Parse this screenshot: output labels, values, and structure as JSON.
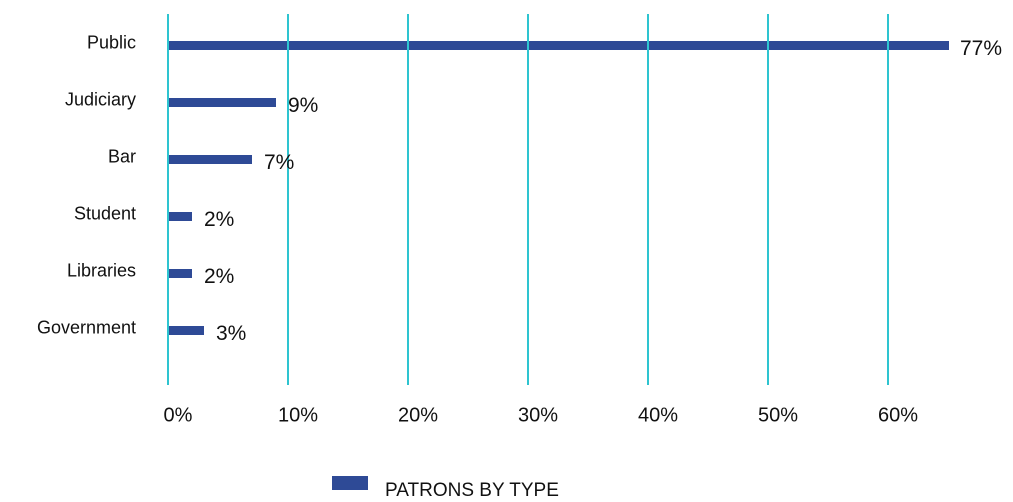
{
  "chart_data": {
    "type": "hbar",
    "categories": [
      "Public",
      "Judiciary",
      "Bar",
      "Student",
      "Libraries",
      "Government"
    ],
    "series": [
      {
        "name": "PATRONS BY TYPE",
        "color": "#2e4a96",
        "values": [
          77,
          9,
          7,
          2,
          2,
          3
        ],
        "value_labels": [
          "77%",
          "9%",
          "7%",
          "2%",
          "2%",
          "3%"
        ]
      }
    ],
    "xlim": [
      0,
      65
    ],
    "xticks": [
      {
        "value": 0,
        "label": "0%"
      },
      {
        "value": 10,
        "label": "10%"
      },
      {
        "value": 20,
        "label": "20%"
      },
      {
        "value": 30,
        "label": "30%"
      },
      {
        "value": 40,
        "label": "40%"
      },
      {
        "value": 50,
        "label": "50%"
      },
      {
        "value": 60,
        "label": "60%"
      }
    ],
    "grid": true,
    "grid_color": "#2ec4d0",
    "legend": "bottom"
  }
}
